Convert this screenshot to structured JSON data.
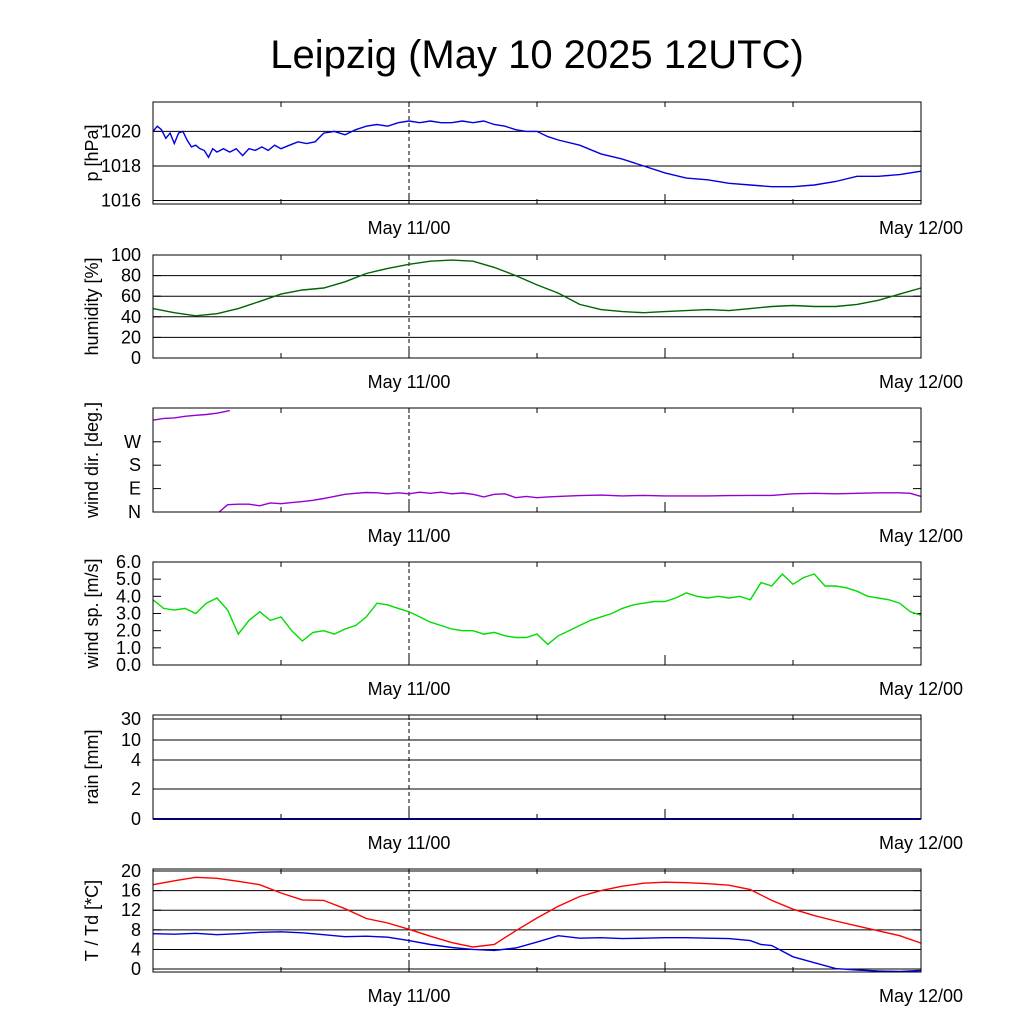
{
  "title": "Leipzig (May 10 2025 12UTC)",
  "x_tick_labels": [
    "May 11/00",
    "May 12/00"
  ],
  "chart_data": [
    {
      "type": "line",
      "ylabel": "p [hPa]",
      "ylim": [
        1015.8,
        1021.7
      ],
      "yticks": [
        1016,
        1018,
        1020
      ],
      "ytick_labels": [
        "1016",
        "1018",
        "1020"
      ],
      "grid": "horizontal",
      "x_unit": "hours since May 10 12UTC",
      "xlim": [
        0,
        36
      ],
      "series": [
        {
          "color": "#0000e0",
          "x": [
            0,
            0.2,
            0.4,
            0.6,
            0.8,
            1.0,
            1.2,
            1.4,
            1.6,
            1.8,
            2.0,
            2.2,
            2.4,
            2.6,
            2.8,
            3.0,
            3.3,
            3.6,
            3.9,
            4.2,
            4.5,
            4.8,
            5.1,
            5.4,
            5.7,
            6.0,
            6.4,
            6.8,
            7.2,
            7.6,
            8.0,
            8.5,
            9.0,
            9.5,
            10.0,
            10.5,
            11.0,
            11.5,
            12.0,
            12.5,
            13.0,
            13.5,
            14.0,
            14.5,
            15.0,
            15.5,
            16.0,
            16.5,
            17.0,
            17.5,
            18.0,
            18.5,
            19.0,
            20.0,
            21.0,
            22.0,
            23.0,
            24.0,
            25.0,
            26.0,
            27.0,
            28.0,
            29.0,
            30.0,
            31.0,
            32.0,
            33.0,
            34.0,
            35.0,
            36.0
          ],
          "values": [
            1020.0,
            1020.3,
            1020.1,
            1019.6,
            1019.9,
            1019.3,
            1019.9,
            1020.0,
            1019.5,
            1019.1,
            1019.2,
            1019.0,
            1018.9,
            1018.5,
            1019.0,
            1018.8,
            1019.0,
            1018.8,
            1019.0,
            1018.6,
            1019.0,
            1018.9,
            1019.1,
            1018.9,
            1019.2,
            1019.0,
            1019.2,
            1019.4,
            1019.3,
            1019.4,
            1019.9,
            1020.0,
            1019.8,
            1020.1,
            1020.3,
            1020.4,
            1020.3,
            1020.5,
            1020.6,
            1020.5,
            1020.6,
            1020.5,
            1020.5,
            1020.6,
            1020.5,
            1020.6,
            1020.4,
            1020.3,
            1020.1,
            1020.0,
            1020.0,
            1019.7,
            1019.5,
            1019.2,
            1018.7,
            1018.4,
            1018.0,
            1017.6,
            1017.3,
            1017.2,
            1017.0,
            1016.9,
            1016.8,
            1016.8,
            1016.9,
            1017.1,
            1017.4,
            1017.4,
            1017.5,
            1017.7
          ]
        }
      ]
    },
    {
      "type": "line",
      "ylabel": "humidity [%]",
      "ylim": [
        0,
        100
      ],
      "yticks": [
        0,
        20,
        40,
        60,
        80,
        100
      ],
      "ytick_labels": [
        "0",
        "20",
        "40",
        "60",
        "80",
        "100"
      ],
      "grid": "horizontal",
      "x_unit": "hours since May 10 12UTC",
      "xlim": [
        0,
        36
      ],
      "series": [
        {
          "color": "#006400",
          "x": [
            0,
            1,
            2,
            3,
            4,
            5,
            6,
            7,
            8,
            9,
            10,
            11,
            12,
            13,
            14,
            15,
            16,
            17,
            18,
            19,
            20,
            21,
            22,
            23,
            24,
            25,
            26,
            27,
            28,
            29,
            30,
            31,
            32,
            33,
            34,
            35,
            36
          ],
          "values": [
            48,
            44,
            41,
            43,
            48,
            55,
            62,
            66,
            68,
            74,
            82,
            87,
            91,
            94,
            95,
            94,
            88,
            80,
            71,
            63,
            52,
            47,
            45,
            44,
            45,
            46,
            47,
            46,
            48,
            50,
            51,
            50,
            50,
            52,
            56,
            62,
            68
          ]
        }
      ]
    },
    {
      "type": "line",
      "ylabel": "wind dir. [deg.]",
      "ylim": [
        0,
        400
      ],
      "yticks": [
        0,
        90,
        180,
        270
      ],
      "ytick_labels": [
        "N",
        "E",
        "S",
        "W"
      ],
      "grid": "none",
      "x_unit": "hours since May 10 12UTC",
      "xlim": [
        0,
        36
      ],
      "series": [
        {
          "color": "#9400d3",
          "x": [
            0,
            0.5,
            1.0,
            1.5,
            2.0,
            2.5,
            3.0,
            3.6
          ],
          "values": [
            353,
            360,
            362,
            368,
            372,
            375,
            380,
            390
          ]
        },
        {
          "color": "#9400d3",
          "x": [
            3.1,
            3.5,
            4.0,
            4.5,
            5.0,
            5.5,
            6.0,
            6.5,
            7.0,
            7.5,
            8.0,
            8.5,
            9.0,
            9.5,
            10.0,
            10.5,
            11.0,
            11.5,
            12.0,
            12.5,
            13.0,
            13.5,
            14.0,
            14.5,
            15.0,
            15.5,
            16.0,
            16.5,
            17.0,
            17.5,
            18.0,
            18.5,
            19.0,
            20.0,
            21.0,
            22.0,
            23.0,
            24.0,
            25.0,
            26.0,
            27.0,
            28.0,
            29.0,
            30.0,
            31.0,
            32.0,
            33.0,
            34.0,
            35.0,
            35.5,
            36.0
          ],
          "values": [
            0,
            28,
            30,
            30,
            24,
            35,
            32,
            36,
            40,
            45,
            52,
            60,
            68,
            72,
            75,
            74,
            70,
            74,
            70,
            76,
            72,
            76,
            70,
            73,
            68,
            58,
            68,
            70,
            55,
            60,
            55,
            58,
            60,
            63,
            65,
            62,
            64,
            62,
            62,
            62,
            63,
            64,
            64,
            70,
            72,
            70,
            72,
            74,
            74,
            72,
            60
          ]
        }
      ]
    },
    {
      "type": "line",
      "ylabel": "wind sp. [m/s]",
      "ylim": [
        0,
        6
      ],
      "yticks": [
        0,
        1,
        2,
        3,
        4,
        5,
        6
      ],
      "ytick_labels": [
        "0.0",
        "1.0",
        "2.0",
        "3.0",
        "4.0",
        "5.0",
        "6.0"
      ],
      "grid": "none",
      "x_unit": "hours since May 10 12UTC",
      "xlim": [
        0,
        36
      ],
      "series": [
        {
          "color": "#00dd00",
          "x": [
            0,
            0.5,
            1.0,
            1.5,
            2.0,
            2.5,
            3.0,
            3.5,
            4.0,
            4.5,
            5.0,
            5.5,
            6.0,
            6.5,
            7.0,
            7.5,
            8.0,
            8.5,
            9.0,
            9.5,
            10.0,
            10.5,
            11.0,
            11.5,
            12.0,
            12.5,
            13.0,
            13.5,
            14.0,
            14.5,
            15.0,
            15.5,
            16.0,
            16.5,
            17.0,
            17.5,
            18.0,
            18.5,
            19.0,
            19.5,
            20.0,
            20.5,
            21.0,
            21.5,
            22.0,
            22.5,
            23.0,
            23.5,
            24.0,
            24.5,
            25.0,
            25.5,
            26.0,
            26.5,
            27.0,
            27.5,
            28.0,
            28.5,
            29.0,
            29.5,
            30.0,
            30.5,
            31.0,
            31.5,
            32.0,
            32.5,
            33.0,
            33.5,
            34.0,
            34.5,
            35.0,
            35.5,
            36.0
          ],
          "values": [
            3.8,
            3.3,
            3.2,
            3.3,
            3.0,
            3.6,
            3.9,
            3.2,
            1.8,
            2.6,
            3.1,
            2.6,
            2.8,
            2.0,
            1.4,
            1.9,
            2.0,
            1.8,
            2.1,
            2.3,
            2.8,
            3.6,
            3.5,
            3.3,
            3.1,
            2.8,
            2.5,
            2.3,
            2.1,
            2.0,
            2.0,
            1.8,
            1.9,
            1.7,
            1.6,
            1.6,
            1.8,
            1.2,
            1.7,
            2.0,
            2.3,
            2.6,
            2.8,
            3.0,
            3.3,
            3.5,
            3.6,
            3.7,
            3.7,
            3.9,
            4.2,
            4.0,
            3.9,
            4.0,
            3.9,
            4.0,
            3.8,
            4.8,
            4.6,
            5.3,
            4.7,
            5.1,
            5.3,
            4.6,
            4.6,
            4.5,
            4.3,
            4.0,
            3.9,
            3.8,
            3.6,
            3.1,
            2.9
          ]
        }
      ]
    },
    {
      "type": "line",
      "ylabel": "rain [mm]",
      "yticks": [
        0,
        2,
        4,
        10,
        30
      ],
      "ytick_labels": [
        "0",
        "2",
        "4",
        "10",
        "30"
      ],
      "grid": "horizontal",
      "x_unit": "hours since May 10 12UTC",
      "xlim": [
        0,
        36
      ],
      "series": [
        {
          "color": "#0000e0",
          "x": [
            0,
            36
          ],
          "values": [
            0,
            0
          ]
        }
      ]
    },
    {
      "type": "line",
      "ylabel": "T / Td [*C]",
      "ylim": [
        -0.6,
        20.4
      ],
      "yticks": [
        0,
        4,
        8,
        12,
        16,
        20
      ],
      "ytick_labels": [
        "0",
        "4",
        "8",
        "12",
        "16",
        "20"
      ],
      "grid": "horizontal",
      "x_unit": "hours since May 10 12UTC",
      "xlim": [
        0,
        36
      ],
      "series": [
        {
          "color": "#ff0000",
          "x": [
            0,
            1,
            2,
            3,
            4,
            5,
            6,
            7,
            8,
            9,
            10,
            11,
            12,
            13,
            14,
            15,
            16,
            17,
            18,
            19,
            20,
            21,
            22,
            23,
            24,
            25,
            26,
            27,
            28,
            29,
            30,
            31,
            32,
            33,
            34,
            35,
            36
          ],
          "values": [
            17.2,
            18.0,
            18.7,
            18.5,
            17.9,
            17.2,
            15.5,
            14.1,
            14.0,
            12.3,
            10.3,
            9.4,
            8.1,
            6.7,
            5.4,
            4.5,
            5.0,
            7.8,
            10.4,
            12.8,
            14.8,
            16.0,
            16.9,
            17.5,
            17.7,
            17.6,
            17.4,
            17.1,
            16.2,
            14.0,
            12.2,
            10.9,
            9.8,
            8.8,
            7.8,
            6.8,
            5.3
          ]
        },
        {
          "color": "#0000e0",
          "x": [
            0,
            1,
            2,
            3,
            4,
            5,
            6,
            7,
            8,
            9,
            10,
            11,
            12,
            13,
            14,
            15,
            16,
            17,
            18,
            19,
            20,
            21,
            22,
            23,
            24,
            25,
            26,
            27,
            28,
            28.5,
            29,
            30,
            31,
            32,
            33,
            34,
            35,
            36
          ],
          "values": [
            7.2,
            7.1,
            7.3,
            7.0,
            7.2,
            7.5,
            7.6,
            7.4,
            7.0,
            6.6,
            6.7,
            6.5,
            5.8,
            5.0,
            4.4,
            4.0,
            3.8,
            4.3,
            5.5,
            6.8,
            6.3,
            6.4,
            6.2,
            6.3,
            6.4,
            6.4,
            6.3,
            6.2,
            5.8,
            5.0,
            4.8,
            2.5,
            1.3,
            0.1,
            -0.2,
            -0.4,
            -0.5,
            -0.3
          ]
        }
      ]
    }
  ]
}
